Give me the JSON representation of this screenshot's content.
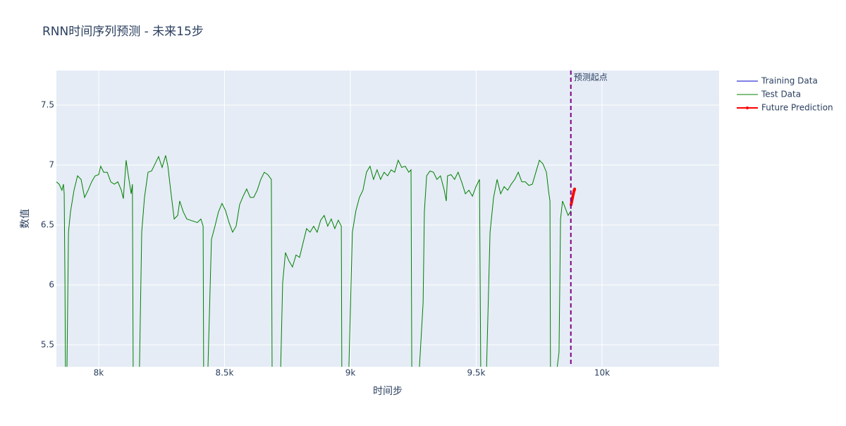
{
  "chart_data": {
    "type": "line",
    "title": "RNN时间序列预测 - 未来15步",
    "x_label": "时间步",
    "y_label": "数值",
    "annotation": "预测起点",
    "vline_x": 9876,
    "vline_color": "#800080",
    "xlim": [
      7832,
      10465
    ],
    "ylim": [
      5.318,
      7.788
    ],
    "xticks": [
      {
        "value": 8000,
        "label": "8k"
      },
      {
        "value": 8500,
        "label": "8.5k"
      },
      {
        "value": 9000,
        "label": "9k"
      },
      {
        "value": 9500,
        "label": "9.5k"
      },
      {
        "value": 10000,
        "label": "10k"
      }
    ],
    "yticks": [
      5.5,
      6,
      6.5,
      7,
      7.5
    ],
    "grid": true,
    "legend": "right",
    "series": [
      {
        "name": "Training Data",
        "color": "#0000cc",
        "markers": false,
        "x": [],
        "values": []
      },
      {
        "name": "Test Data",
        "color": "#008000",
        "markers": false,
        "x": [
          7832,
          7843,
          7854,
          7860,
          7863,
          7866,
          7868,
          7874,
          7880,
          7888,
          7902,
          7916,
          7930,
          7944,
          7958,
          7972,
          7986,
          8000,
          8008,
          8020,
          8034,
          8048,
          8062,
          8076,
          8090,
          8098,
          8109,
          8118,
          8129,
          8134,
          8137,
          8154,
          8162,
          8171,
          8182,
          8196,
          8210,
          8224,
          8238,
          8252,
          8266,
          8275,
          8286,
          8300,
          8314,
          8322,
          8336,
          8350,
          8364,
          8392,
          8406,
          8415,
          8417,
          8434,
          8448,
          8462,
          8476,
          8490,
          8504,
          8518,
          8532,
          8546,
          8560,
          8574,
          8588,
          8602,
          8616,
          8630,
          8644,
          8658,
          8672,
          8686,
          8689,
          8714,
          8723,
          8731,
          8742,
          8756,
          8770,
          8784,
          8798,
          8812,
          8826,
          8840,
          8854,
          8868,
          8882,
          8896,
          8910,
          8924,
          8938,
          8952,
          8964,
          8966,
          8994,
          9008,
          9022,
          9036,
          9050,
          9064,
          9078,
          9092,
          9106,
          9120,
          9134,
          9148,
          9162,
          9176,
          9190,
          9204,
          9218,
          9232,
          9241,
          9244,
          9274,
          9289,
          9294,
          9303,
          9316,
          9330,
          9344,
          9358,
          9373,
          9381,
          9386,
          9400,
          9414,
          9428,
          9442,
          9457,
          9471,
          9485,
          9499,
          9513,
          9518,
          9541,
          9555,
          9569,
          9583,
          9597,
          9611,
          9625,
          9639,
          9653,
          9667,
          9681,
          9695,
          9709,
          9723,
          9737,
          9751,
          9765,
          9779,
          9787,
          9793,
          9795,
          9821,
          9829,
          9835,
          9843,
          9854,
          9865,
          9877
        ],
        "values": [
          6.86,
          6.84,
          6.79,
          6.84,
          6.76,
          6.02,
          5.3,
          5.3,
          6.44,
          6.61,
          6.79,
          6.91,
          6.88,
          6.73,
          6.79,
          6.86,
          6.91,
          6.92,
          6.99,
          6.94,
          6.94,
          6.86,
          6.84,
          6.86,
          6.79,
          6.72,
          7.04,
          6.91,
          6.76,
          6.84,
          5.3,
          5.3,
          5.3,
          6.44,
          6.73,
          6.94,
          6.95,
          7.01,
          7.07,
          6.98,
          7.08,
          6.99,
          6.79,
          6.55,
          6.58,
          6.7,
          6.61,
          6.55,
          6.54,
          6.52,
          6.55,
          6.49,
          5.3,
          5.3,
          6.38,
          6.49,
          6.61,
          6.68,
          6.62,
          6.52,
          6.44,
          6.49,
          6.67,
          6.74,
          6.8,
          6.73,
          6.73,
          6.79,
          6.88,
          6.94,
          6.92,
          6.88,
          5.3,
          5.3,
          5.3,
          6.02,
          6.27,
          6.2,
          6.15,
          6.25,
          6.23,
          6.35,
          6.47,
          6.44,
          6.49,
          6.44,
          6.54,
          6.58,
          6.49,
          6.55,
          6.47,
          6.54,
          6.49,
          5.3,
          5.3,
          6.44,
          6.62,
          6.73,
          6.79,
          6.94,
          6.99,
          6.88,
          6.96,
          6.88,
          6.94,
          6.91,
          6.96,
          6.94,
          7.04,
          6.98,
          6.99,
          6.94,
          6.96,
          5.3,
          5.3,
          5.85,
          6.61,
          6.91,
          6.95,
          6.94,
          6.88,
          6.91,
          6.79,
          6.7,
          6.91,
          6.92,
          6.88,
          6.94,
          6.86,
          6.76,
          6.79,
          6.74,
          6.82,
          6.88,
          5.3,
          5.3,
          6.44,
          6.73,
          6.88,
          6.76,
          6.82,
          6.79,
          6.84,
          6.88,
          6.94,
          6.86,
          6.86,
          6.83,
          6.84,
          6.94,
          7.04,
          7.01,
          6.94,
          6.79,
          6.7,
          5.3,
          5.3,
          5.44,
          6.55,
          6.7,
          6.64,
          6.58,
          6.62
        ]
      },
      {
        "name": "Future Prediction",
        "color": "#ff0000",
        "markers": true,
        "x": [
          9877,
          9878,
          9879,
          9880,
          9881,
          9882,
          9883,
          9884,
          9885,
          9886,
          9887,
          9888,
          9889,
          9890,
          9891
        ],
        "values": [
          6.67,
          6.68,
          6.69,
          6.7,
          6.71,
          6.72,
          6.73,
          6.74,
          6.75,
          6.76,
          6.77,
          6.78,
          6.79,
          6.79,
          6.8
        ]
      }
    ]
  }
}
